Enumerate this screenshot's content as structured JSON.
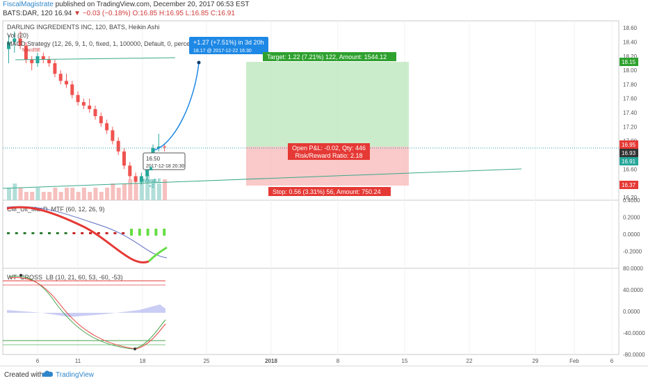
{
  "header": {
    "author": "FiscalMagistrate",
    "published": "published on TradingView.com, December 20, 2017 06:53 EST",
    "symbol": "BATS:DAR, 120",
    "price": "16.94",
    "change": "▼ −0.03 (−0.18%)",
    "ohlc_o": "O:16.85",
    "ohlc_h": "H:16.95",
    "ohlc_l": "L:16.85",
    "ohlc_c": "C:16.91"
  },
  "legend": {
    "line1": "DARLING INGREDIENTS INC, 120, BATS, Heikin Ashi",
    "line2": "Vol (20)",
    "line3": "MACD Strategy (12, 26, 9, 1, 0, fixed, 1, 100000, Default, 0, percent,",
    "macd_short": "MacdSE"
  },
  "annotations": {
    "projection_l1": "+1.27 (+7.51%) in 3d 20h",
    "projection_l2": "18.17 @ 2017-12-22 16:30",
    "target": "Target: 1.22 (7.21%) 122, Amount: 1544.12",
    "pnl_l1": "Open P&L: -0.02, Qty: 446",
    "pnl_l2": "Risk/Reward Ratio: 2.18",
    "stop": "Stop: 0.56 (3.31%) 56, Amount: 750.24",
    "tooltip_l1": "16.50",
    "tooltip_l2": "2017-12-18 20:30",
    "macd_long": "MacdLE",
    "plus_two": "+2"
  },
  "price_badges": [
    "18.15",
    "16.95",
    "16.93",
    "16.91",
    "16.37"
  ],
  "pane2_title": "CM_Ult_MacD_MTF (60, 12, 26, 9)",
  "pane3_title": "WT_CROSS_LB (10, 21, 60, 53, -60, -53)",
  "footer": {
    "created": "Created with",
    "brand": "TradingView"
  },
  "colors": {
    "up": "#26a69a",
    "down": "#ef5350",
    "target": "#3bb03b",
    "stop": "#e53935",
    "blue": "#1e88e5"
  },
  "chart_data": [
    {
      "type": "candlestick",
      "title": "DARLING INGREDIENTS INC, 120, BATS, Heikin Ashi",
      "x_ticks": [
        "6",
        "11",
        "18",
        "25",
        "2018",
        "8",
        "15",
        "22",
        "29",
        "Feb",
        "6"
      ],
      "y_ticks": [
        "18.60",
        "18.40",
        "18.20",
        "18.00",
        "17.80",
        "17.60",
        "17.40",
        "17.20",
        "17.00",
        "16.80",
        "16.60",
        "16.40",
        "16.20"
      ],
      "ylim": [
        16.16,
        18.7
      ],
      "candles": [
        [
          18.3,
          18.5,
          18.1,
          18.4
        ],
        [
          18.4,
          18.55,
          18.25,
          18.45
        ],
        [
          18.45,
          18.55,
          18.3,
          18.35
        ],
        [
          18.35,
          18.4,
          18.1,
          18.15
        ],
        [
          18.15,
          18.2,
          18.0,
          18.1
        ],
        [
          18.1,
          18.25,
          18.05,
          18.2
        ],
        [
          18.2,
          18.25,
          18.1,
          18.15
        ],
        [
          18.15,
          18.2,
          18.05,
          18.1
        ],
        [
          18.1,
          18.15,
          17.9,
          17.95
        ],
        [
          17.95,
          18.0,
          17.8,
          17.85
        ],
        [
          17.85,
          17.95,
          17.75,
          17.8
        ],
        [
          17.8,
          17.85,
          17.6,
          17.65
        ],
        [
          17.65,
          17.7,
          17.5,
          17.55
        ],
        [
          17.55,
          17.6,
          17.45,
          17.5
        ],
        [
          17.5,
          17.6,
          17.4,
          17.45
        ],
        [
          17.45,
          17.5,
          17.3,
          17.35
        ],
        [
          17.35,
          17.4,
          17.2,
          17.25
        ],
        [
          17.25,
          17.3,
          17.1,
          17.15
        ],
        [
          17.15,
          17.2,
          16.95,
          17.0
        ],
        [
          17.0,
          17.05,
          16.8,
          16.85
        ],
        [
          16.85,
          16.9,
          16.6,
          16.65
        ],
        [
          16.65,
          16.7,
          16.45,
          16.5
        ],
        [
          16.5,
          16.55,
          16.4,
          16.42
        ],
        [
          16.42,
          16.55,
          16.38,
          16.5
        ],
        [
          16.5,
          16.7,
          16.45,
          16.68
        ],
        [
          16.68,
          16.95,
          16.6,
          16.9
        ],
        [
          16.9,
          17.1,
          16.85,
          16.92
        ],
        [
          16.92,
          16.96,
          16.85,
          16.91
        ]
      ],
      "horizontal_levels": {
        "entry": 16.93,
        "target": 18.15,
        "stop": 16.37
      },
      "series": [
        {
          "name": "Volume",
          "values": [
            3,
            4,
            3,
            2,
            2,
            3,
            2,
            2,
            3,
            2,
            3,
            3,
            2,
            3,
            2,
            3,
            2,
            3,
            4,
            3,
            4,
            5,
            4,
            5,
            6,
            5,
            4,
            5
          ]
        },
        {
          "name": "CM_Ult_MacD_MTF",
          "values": [
            0.35,
            0.36,
            0.34,
            0.32,
            0.25,
            0.18,
            0.1,
            0.02,
            -0.06,
            -0.12,
            -0.18,
            -0.22,
            -0.26,
            -0.3,
            -0.34,
            -0.36,
            -0.3,
            -0.22,
            -0.14,
            -0.06
          ]
        },
        {
          "name": "WT_CROSS_LB",
          "values": [
            64,
            66,
            58,
            40,
            12,
            -12,
            -30,
            -44,
            -52,
            -58,
            -62,
            -64,
            -66,
            -70,
            -66,
            -58,
            -48,
            -36,
            -24,
            -18
          ]
        }
      ],
      "pane2_ylim": [
        -0.4,
        0.4
      ],
      "pane2_ticks": [
        "0.4000",
        "0.2000",
        "0.0000",
        "-0.2000"
      ],
      "pane3_ylim": [
        -80,
        80
      ],
      "pane3_ticks": [
        "80.0000",
        "40.0000",
        "0.0000",
        "-40.0000",
        "-80.0000"
      ]
    }
  ]
}
